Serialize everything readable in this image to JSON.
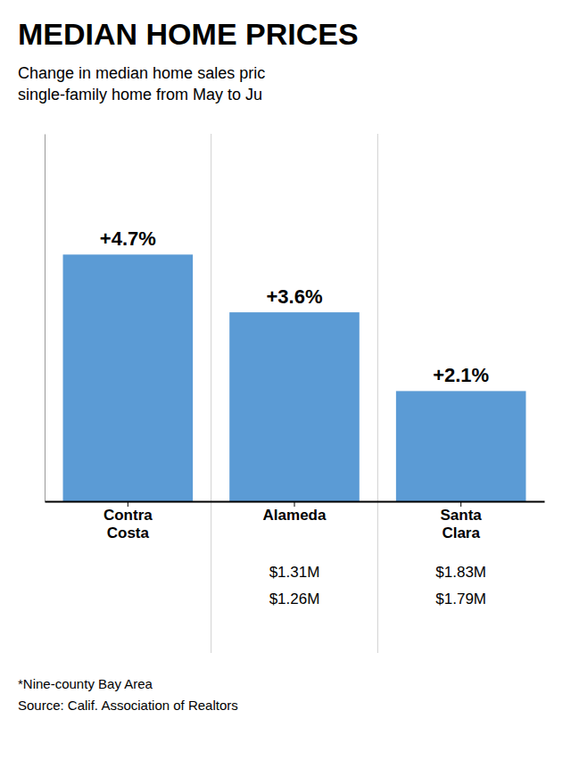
{
  "chart_data": {
    "type": "bar",
    "title": "MEDIAN HOME PRICES",
    "subtitle": [
      "Change in median home sales pric",
      "single-family home from May to Ju"
    ],
    "categories": [
      "Contra\nCosta",
      "Alameda",
      "Santa\nClara"
    ],
    "values": [
      4.7,
      3.6,
      2.1
    ],
    "value_labels": [
      "+4.7%",
      "+3.6%",
      "+2.1%"
    ],
    "data_labels": true,
    "color": "#5b9bd5",
    "ylim": [
      0,
      7
    ],
    "tick_labels": "x",
    "grid": false,
    "annotations": [
      {
        "category": "Alameda",
        "texts": [
          "$1.31M",
          "$1.26M"
        ]
      },
      {
        "category": "Santa\nClara",
        "texts": [
          "$1.83M",
          "$1.79M"
        ]
      }
    ],
    "footnotes": [
      "*Nine-county Bay Area",
      "Source: Calif. Association of Realtors"
    ]
  }
}
